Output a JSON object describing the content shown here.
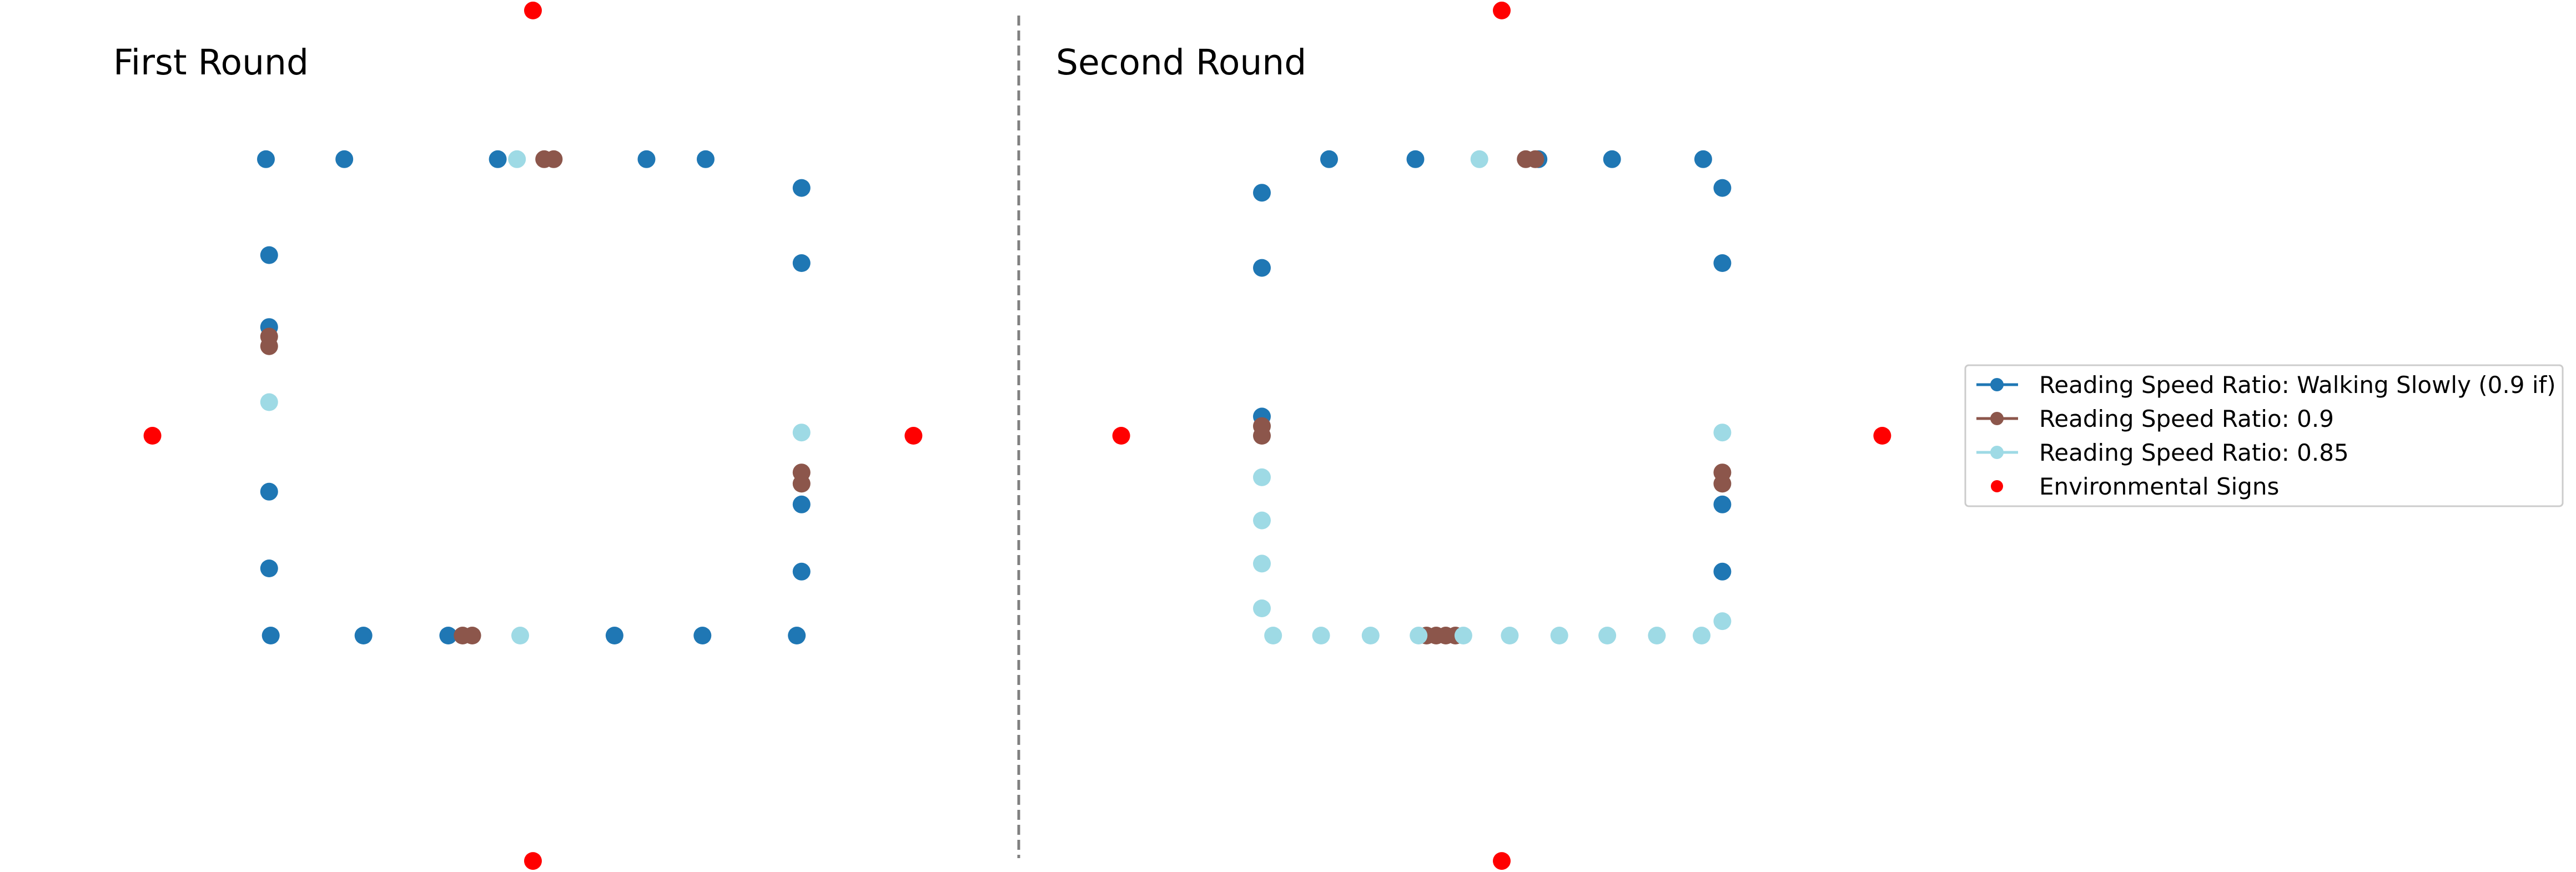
{
  "chart_data": [
    {
      "type": "scatter",
      "title": "First Round",
      "xlim": [
        -2.7,
        2.7
      ],
      "ylim": [
        -2.7,
        2.7
      ],
      "axes": "off",
      "grid": false,
      "series": [
        {
          "name": "Reading Speed Ratio: Walking Slowly (0.9 if)",
          "color": "#1f77b4",
          "points": [
            [
              -1.67,
              1.73
            ],
            [
              -1.18,
              1.73
            ],
            [
              -0.22,
              1.73
            ],
            [
              0.71,
              1.73
            ],
            [
              1.08,
              1.73
            ],
            [
              1.68,
              1.55
            ],
            [
              1.68,
              1.08
            ],
            [
              1.68,
              -0.43
            ],
            [
              1.68,
              -0.85
            ],
            [
              1.65,
              -1.25
            ],
            [
              1.06,
              -1.25
            ],
            [
              0.51,
              -1.25
            ],
            [
              -0.53,
              -1.25
            ],
            [
              -1.06,
              -1.25
            ],
            [
              -1.64,
              -1.25
            ],
            [
              -1.65,
              -0.83
            ],
            [
              -1.65,
              -0.35
            ],
            [
              -1.65,
              0.68
            ],
            [
              -1.65,
              1.13
            ]
          ]
        },
        {
          "name": "Reading Speed Ratio: 0.9",
          "color": "#8c564b",
          "points": [
            [
              0.07,
              1.73
            ],
            [
              0.13,
              1.73
            ],
            [
              1.68,
              -0.23
            ],
            [
              1.68,
              -0.3
            ],
            [
              -0.44,
              -1.25
            ],
            [
              -0.38,
              -1.25
            ],
            [
              -1.65,
              0.62
            ],
            [
              -1.65,
              0.56
            ]
          ]
        },
        {
          "name": "Reading Speed Ratio: 0.85",
          "color": "#9edae5",
          "points": [
            [
              -0.1,
              1.73
            ],
            [
              1.68,
              0.02
            ],
            [
              -0.08,
              -1.25
            ],
            [
              -1.65,
              0.21
            ]
          ]
        },
        {
          "name": "Environmental Signs",
          "color": "#ff0000",
          "points": [
            [
              0,
              2.66
            ],
            [
              0,
              -2.66
            ],
            [
              -2.38,
              0
            ],
            [
              2.38,
              0
            ]
          ]
        }
      ]
    },
    {
      "type": "scatter",
      "title": "Second Round",
      "xlim": [
        -2.7,
        2.7
      ],
      "ylim": [
        -2.7,
        2.7
      ],
      "axes": "off",
      "grid": false,
      "series": [
        {
          "name": "Reading Speed Ratio: Walking Slowly (0.9 if)",
          "color": "#1f77b4",
          "points": [
            [
              -1.08,
              1.73
            ],
            [
              -0.54,
              1.73
            ],
            [
              0.23,
              1.73
            ],
            [
              0.69,
              1.73
            ],
            [
              1.26,
              1.73
            ],
            [
              1.38,
              1.55
            ],
            [
              1.38,
              1.08
            ],
            [
              1.38,
              -0.43
            ],
            [
              1.38,
              -0.85
            ],
            [
              -1.5,
              1.52
            ],
            [
              -1.5,
              1.05
            ],
            [
              -1.5,
              0.12
            ]
          ]
        },
        {
          "name": "Reading Speed Ratio: 0.9",
          "color": "#8c564b",
          "points": [
            [
              0.15,
              1.73
            ],
            [
              0.21,
              1.73
            ],
            [
              1.38,
              -0.23
            ],
            [
              1.38,
              -0.3
            ],
            [
              -0.47,
              -1.25
            ],
            [
              -0.41,
              -1.25
            ],
            [
              -0.35,
              -1.25
            ],
            [
              -0.29,
              -1.25
            ],
            [
              -1.5,
              0.06
            ],
            [
              -1.5,
              0.0
            ]
          ]
        },
        {
          "name": "Reading Speed Ratio: 0.85",
          "color": "#9edae5",
          "points": [
            [
              -0.14,
              1.73
            ],
            [
              1.38,
              0.02
            ],
            [
              1.38,
              -1.16
            ],
            [
              1.25,
              -1.25
            ],
            [
              0.97,
              -1.25
            ],
            [
              0.66,
              -1.25
            ],
            [
              0.36,
              -1.25
            ],
            [
              0.05,
              -1.25
            ],
            [
              -0.24,
              -1.25
            ],
            [
              -0.52,
              -1.25
            ],
            [
              -0.82,
              -1.25
            ],
            [
              -1.13,
              -1.25
            ],
            [
              -1.43,
              -1.25
            ],
            [
              -1.5,
              -1.08
            ],
            [
              -1.5,
              -0.8
            ],
            [
              -1.5,
              -0.53
            ],
            [
              -1.5,
              -0.26
            ]
          ]
        },
        {
          "name": "Environmental Signs",
          "color": "#ff0000",
          "points": [
            [
              0,
              2.66
            ],
            [
              0,
              -2.66
            ],
            [
              -2.38,
              0
            ],
            [
              2.38,
              0
            ]
          ]
        }
      ]
    }
  ],
  "legend": {
    "placement": "center-right",
    "entries": [
      {
        "label": "Reading Speed Ratio: Walking Slowly (0.9 if)",
        "color": "#1f77b4",
        "style": "line-marker"
      },
      {
        "label": "Reading Speed Ratio: 0.9",
        "color": "#8c564b",
        "style": "line-marker"
      },
      {
        "label": "Reading Speed Ratio: 0.85",
        "color": "#9edae5",
        "style": "line-marker"
      },
      {
        "label": "Environmental Signs",
        "color": "#ff0000",
        "style": "marker"
      }
    ]
  },
  "divider": {
    "style": "dashed",
    "color": "#808080"
  }
}
